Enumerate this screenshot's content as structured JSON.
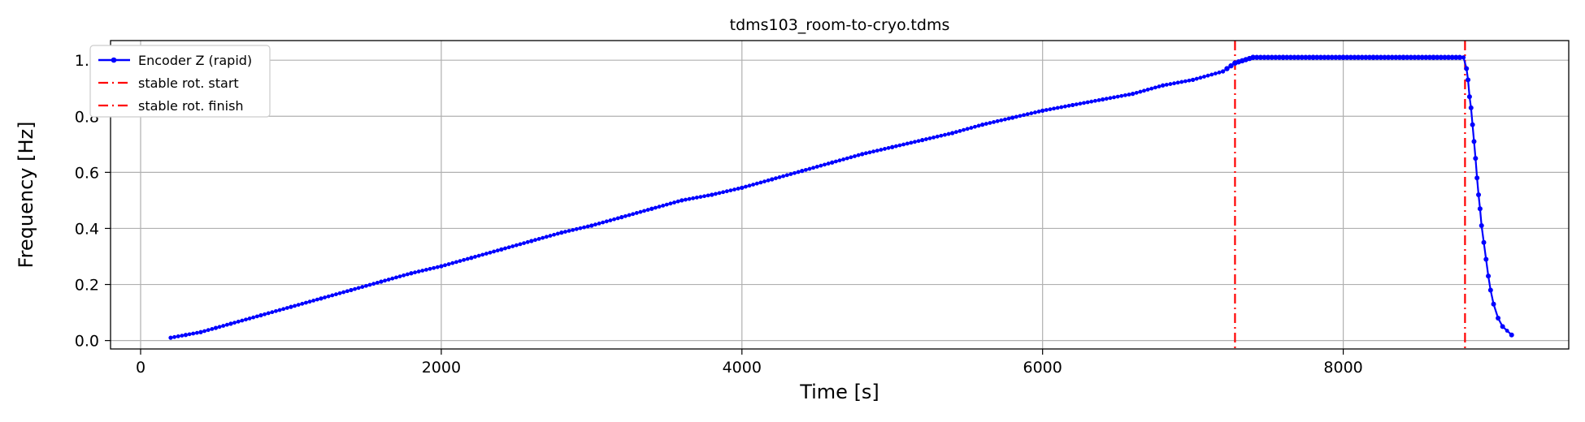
{
  "chart_data": {
    "type": "line",
    "title": "tdms103_room-to-cryo.tdms",
    "xlabel": "Time [s]",
    "ylabel": "Frequency [Hz]",
    "xlim": [
      -200,
      9500
    ],
    "ylim": [
      -0.03,
      1.07
    ],
    "x_ticks": [
      0,
      2000,
      4000,
      6000,
      8000
    ],
    "y_ticks": [
      0.0,
      0.2,
      0.4,
      0.6,
      0.8,
      1.0
    ],
    "x_tick_labels": [
      "0",
      "2000",
      "4000",
      "6000",
      "8000"
    ],
    "y_tick_labels": [
      "0.0",
      "0.2",
      "0.4",
      "0.6",
      "0.8",
      "1.0"
    ],
    "grid": true,
    "legend_position": "top-left",
    "series": [
      {
        "name": "Encoder Z (rapid)",
        "color": "#0000ff",
        "style": "solid-with-dots",
        "x": [
          200,
          300,
          400,
          500,
          600,
          800,
          1000,
          1200,
          1400,
          1600,
          1800,
          2000,
          2200,
          2400,
          2600,
          2800,
          3000,
          3200,
          3400,
          3600,
          3800,
          4000,
          4200,
          4400,
          4600,
          4800,
          5000,
          5200,
          5400,
          5600,
          5800,
          6000,
          6200,
          6400,
          6600,
          6800,
          7000,
          7200,
          7280,
          7400,
          7600,
          7800,
          8000,
          8200,
          8400,
          8600,
          8800,
          8820,
          8830,
          8840,
          8850,
          8860,
          8870,
          8880,
          8890,
          8900,
          8910,
          8920,
          8935,
          8950,
          8965,
          8980,
          9000,
          9030,
          9060,
          9120
        ],
        "y": [
          0.01,
          0.02,
          0.03,
          0.045,
          0.06,
          0.09,
          0.12,
          0.15,
          0.18,
          0.21,
          0.24,
          0.265,
          0.295,
          0.325,
          0.355,
          0.385,
          0.41,
          0.44,
          0.47,
          0.5,
          0.52,
          0.545,
          0.575,
          0.605,
          0.635,
          0.665,
          0.69,
          0.715,
          0.74,
          0.77,
          0.795,
          0.82,
          0.84,
          0.86,
          0.88,
          0.91,
          0.93,
          0.96,
          0.99,
          1.01,
          1.01,
          1.01,
          1.01,
          1.01,
          1.01,
          1.01,
          1.01,
          0.97,
          0.93,
          0.87,
          0.83,
          0.77,
          0.71,
          0.65,
          0.58,
          0.52,
          0.47,
          0.41,
          0.35,
          0.29,
          0.23,
          0.18,
          0.13,
          0.08,
          0.05,
          0.02
        ]
      }
    ],
    "vlines": [
      {
        "name": "stable rot. start",
        "x": 7280,
        "color": "#ff0000",
        "style": "dash-dot"
      },
      {
        "name": "stable rot. finish",
        "x": 8810,
        "color": "#ff0000",
        "style": "dash-dot"
      }
    ]
  }
}
